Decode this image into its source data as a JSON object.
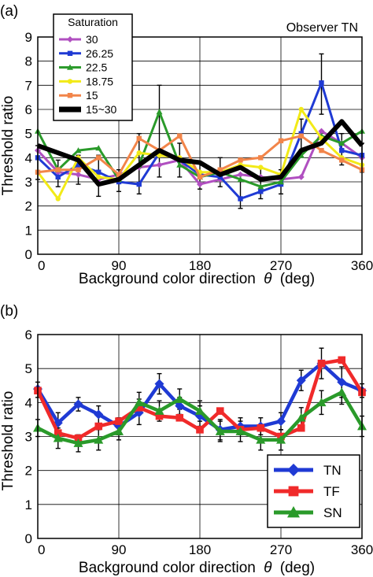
{
  "chart_data": [
    {
      "type": "line",
      "panel_label": "(a)",
      "annotation": "Observer TN",
      "xlabel": "Background color direction",
      "xlabel_symbol": "θ",
      "xlabel_unit": "(deg)",
      "ylabel": "Threshold ratio",
      "xlim": [
        0,
        360
      ],
      "ylim": [
        0,
        9
      ],
      "x_ticks": [
        "0",
        "90",
        "180",
        "270",
        "360"
      ],
      "y_ticks": [
        "0",
        "1",
        "2",
        "3",
        "4",
        "5",
        "6",
        "7",
        "8",
        "9"
      ],
      "grid": true,
      "legend_title": "Saturation",
      "legend_position": "top-left",
      "x": [
        0,
        22.5,
        45,
        67.5,
        90,
        112.5,
        135,
        157.5,
        180,
        202.5,
        225,
        247.5,
        270,
        292.5,
        315,
        337.5,
        360
      ],
      "series": [
        {
          "name": "30",
          "color": "#b04fc0",
          "marker": "diamond",
          "values": [
            4.3,
            3.4,
            3.3,
            3.1,
            3.3,
            3.6,
            3.7,
            3.9,
            2.9,
            3.1,
            3.3,
            3.2,
            3.1,
            3.2,
            5.1,
            4.6,
            4.0
          ]
        },
        {
          "name": "26.25",
          "color": "#1f3ad4",
          "marker": "square",
          "values": [
            4.0,
            3.2,
            3.7,
            3.4,
            3.0,
            2.9,
            4.2,
            3.9,
            3.3,
            3.2,
            2.3,
            2.6,
            2.9,
            5.0,
            7.1,
            4.3,
            4.1
          ]
        },
        {
          "name": "22.5",
          "color": "#2a9a2a",
          "marker": "triangle",
          "values": [
            5.1,
            3.5,
            4.3,
            4.4,
            3.1,
            3.7,
            5.9,
            3.7,
            3.2,
            3.4,
            3.1,
            2.8,
            3.0,
            4.1,
            4.9,
            4.6,
            5.1
          ]
        },
        {
          "name": "18.75",
          "color": "#f2ea17",
          "marker": "circle",
          "values": [
            3.4,
            2.3,
            4.0,
            3.2,
            3.1,
            4.2,
            4.1,
            4.0,
            3.4,
            3.4,
            3.7,
            3.6,
            3.3,
            6.0,
            4.8,
            4.0,
            3.7
          ]
        },
        {
          "name": "15",
          "color": "#f2854a",
          "marker": "square",
          "values": [
            3.4,
            3.5,
            3.5,
            4.0,
            3.3,
            4.8,
            4.3,
            4.9,
            3.2,
            3.5,
            3.9,
            4.0,
            4.7,
            4.9,
            4.3,
            3.9,
            3.5
          ]
        },
        {
          "name": "15~30",
          "color": "#000000",
          "marker": "none",
          "values": [
            4.5,
            4.2,
            3.9,
            2.9,
            3.1,
            3.7,
            4.3,
            3.9,
            3.8,
            3.3,
            3.6,
            3.1,
            3.2,
            4.3,
            4.6,
            5.5,
            4.5
          ]
        }
      ],
      "error_bars": {
        "series": "26.25",
        "upper": [
          4.5,
          3.9,
          4.1,
          4.1,
          3.5,
          5.0,
          7.0,
          4.6,
          3.8,
          4.0,
          3.3,
          3.6,
          3.5,
          5.6,
          8.3,
          5.0,
          4.6
        ],
        "lower": [
          3.1,
          2.8,
          2.9,
          2.4,
          2.6,
          2.5,
          3.2,
          3.2,
          2.7,
          2.8,
          1.9,
          2.3,
          2.5,
          4.2,
          5.8,
          3.7,
          3.4
        ]
      }
    },
    {
      "type": "line",
      "panel_label": "(b)",
      "xlabel": "Background color direction",
      "xlabel_symbol": "θ",
      "xlabel_unit": "(deg)",
      "ylabel": "Threshold ratio",
      "xlim": [
        0,
        360
      ],
      "ylim": [
        0,
        6
      ],
      "x_ticks": [
        "0",
        "90",
        "180",
        "270",
        "360"
      ],
      "y_ticks": [
        "0",
        "1",
        "2",
        "3",
        "4",
        "5",
        "6"
      ],
      "grid": true,
      "legend_position": "bottom-right",
      "x": [
        0,
        22.5,
        45,
        67.5,
        90,
        112.5,
        135,
        157.5,
        180,
        202.5,
        225,
        247.5,
        270,
        292.5,
        315,
        337.5,
        360
      ],
      "series": [
        {
          "name": "TN",
          "color": "#1f3ad4",
          "marker": "diamond",
          "values": [
            4.4,
            3.4,
            3.95,
            3.65,
            3.3,
            3.7,
            4.55,
            3.9,
            3.6,
            3.2,
            3.3,
            3.3,
            3.45,
            4.65,
            5.15,
            4.6,
            4.35
          ]
        },
        {
          "name": "TF",
          "color": "#f02a2a",
          "marker": "square",
          "values": [
            4.35,
            3.1,
            2.95,
            3.3,
            3.45,
            3.85,
            3.6,
            3.55,
            3.2,
            3.75,
            3.2,
            3.25,
            3.0,
            3.25,
            5.15,
            5.25,
            4.3
          ]
        },
        {
          "name": "SN",
          "color": "#2a9a2a",
          "marker": "triangle",
          "values": [
            3.25,
            2.95,
            2.8,
            2.9,
            3.15,
            4.0,
            3.75,
            4.1,
            3.75,
            3.15,
            3.15,
            2.9,
            2.9,
            3.55,
            4.0,
            4.3,
            3.3
          ]
        }
      ],
      "error_bars": {
        "upper": [
          4.6,
          3.7,
          4.15,
          3.9,
          3.55,
          4.1,
          4.85,
          4.15,
          3.9,
          3.5,
          3.55,
          3.55,
          3.7,
          4.95,
          5.6,
          5.05,
          4.55
        ],
        "lower": [
          4.15,
          3.1,
          3.75,
          3.35,
          3.05,
          3.35,
          4.25,
          3.65,
          3.3,
          2.9,
          3.05,
          3.05,
          3.2,
          4.35,
          4.7,
          4.15,
          4.15
        ],
        "other_series_upper": [
          3.5,
          3.25,
          3.05,
          3.2,
          3.4,
          4.3,
          4.05,
          4.4,
          4.05,
          3.45,
          3.45,
          3.2,
          3.2,
          3.85,
          4.35,
          4.65,
          3.6
        ],
        "other_series_lower": [
          3.0,
          2.65,
          2.55,
          2.6,
          2.9,
          3.7,
          3.45,
          3.8,
          3.45,
          2.85,
          2.85,
          2.6,
          2.6,
          3.25,
          3.65,
          3.95,
          3.0
        ]
      }
    }
  ]
}
